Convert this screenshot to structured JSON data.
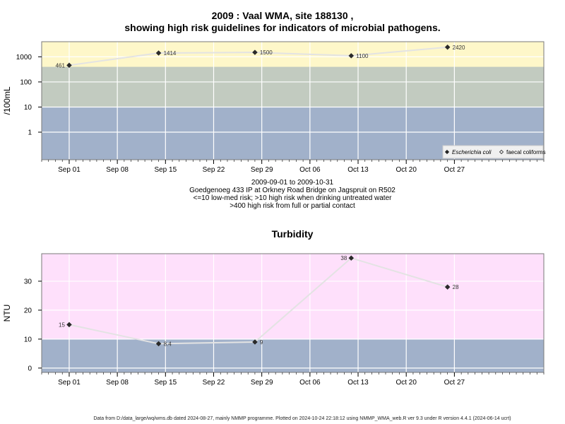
{
  "chart_data": [
    {
      "type": "line",
      "title_line1": "2009 : Vaal WMA, site 188130 ,",
      "title_line2": "showing high risk guidelines for indicators of microbial pathogens.",
      "ylabel": "/100mL",
      "yscale": "log",
      "yticks": [
        1,
        10,
        100,
        1000
      ],
      "ytick_labels": [
        "1",
        "10",
        "100",
        "1000"
      ],
      "ylim": [
        0.08,
        4000
      ],
      "xlim": [
        "2009-08-28",
        "2009-11-09"
      ],
      "xticks": [
        "2009-09-01",
        "2009-09-08",
        "2009-09-15",
        "2009-09-22",
        "2009-09-29",
        "2009-10-06",
        "2009-10-13",
        "2009-10-20",
        "2009-10-27"
      ],
      "xtick_labels": [
        "Sep 01",
        "Sep 08",
        "Sep 15",
        "Sep 22",
        "Sep 29",
        "Oct 06",
        "Oct 13",
        "Oct 20",
        "Oct 27"
      ],
      "bands": [
        {
          "from": 0.08,
          "to": 10,
          "color": "#a1b1ca"
        },
        {
          "from": 10,
          "to": 400,
          "color": "#c2cbc0"
        },
        {
          "from": 400,
          "to": 4000,
          "color": "#fef7c9"
        }
      ],
      "series": [
        {
          "name": "Escherichia coli",
          "marker": "filled-diamond",
          "x": [
            "2009-09-01",
            "2009-09-14",
            "2009-09-28",
            "2009-10-12",
            "2009-10-26"
          ],
          "values": [
            461,
            1414,
            1500,
            1100,
            2420
          ],
          "labels": [
            "461",
            "1414",
            "1500",
            "1100",
            "2420"
          ]
        }
      ],
      "legend": {
        "position": "bottom-right",
        "entries": [
          {
            "label": "Escherichia coli",
            "marker": "filled-diamond",
            "italic": true
          },
          {
            "label": "faecal coliforms",
            "marker": "open-diamond",
            "italic": false
          }
        ]
      },
      "grid": true
    },
    {
      "type": "line",
      "title": "Turbidity",
      "ylabel": "NTU",
      "yscale": "linear",
      "yticks": [
        0,
        10,
        20,
        30
      ],
      "ytick_labels": [
        "0",
        "10",
        "20",
        "30"
      ],
      "ylim": [
        -1.5,
        39.5
      ],
      "xlim": [
        "2009-08-28",
        "2009-11-09"
      ],
      "xticks": [
        "2009-09-01",
        "2009-09-08",
        "2009-09-15",
        "2009-09-22",
        "2009-09-29",
        "2009-10-06",
        "2009-10-13",
        "2009-10-20",
        "2009-10-27"
      ],
      "xtick_labels": [
        "Sep 01",
        "Sep 08",
        "Sep 15",
        "Sep 22",
        "Sep 29",
        "Oct 06",
        "Oct 13",
        "Oct 20",
        "Oct 27"
      ],
      "bands": [
        {
          "from": -1.5,
          "to": 10,
          "color": "#a1b1ca"
        },
        {
          "from": 10,
          "to": 39.5,
          "color": "#fee0fb"
        }
      ],
      "series": [
        {
          "x": [
            "2009-09-01",
            "2009-09-14",
            "2009-09-28",
            "2009-10-12",
            "2009-10-26"
          ],
          "values": [
            15,
            8.4,
            9,
            38,
            28
          ],
          "labels": [
            "15",
            "8.4",
            "9",
            "38",
            "28"
          ]
        }
      ],
      "grid": true
    }
  ],
  "info": {
    "line1": "2009-09-01 to 2009-10-31",
    "line2": "Goedgenoeg 433 IP at Orkney Road Bridge on Jagspruit on R502",
    "line3": "<=10 low-med risk; >10 high risk when drinking untreated water",
    "line4": ">400 high risk from full or partial contact"
  },
  "footer": "Data from D:/data_large/wq/wms.db dated 2024-08-27, mainly NMMP programme. Plotted on 2024-10-24 22:18:12 using NMMP_WMA_web.R ver 9.3 under R version 4.4.1 (2024-06-14 ucrt)"
}
